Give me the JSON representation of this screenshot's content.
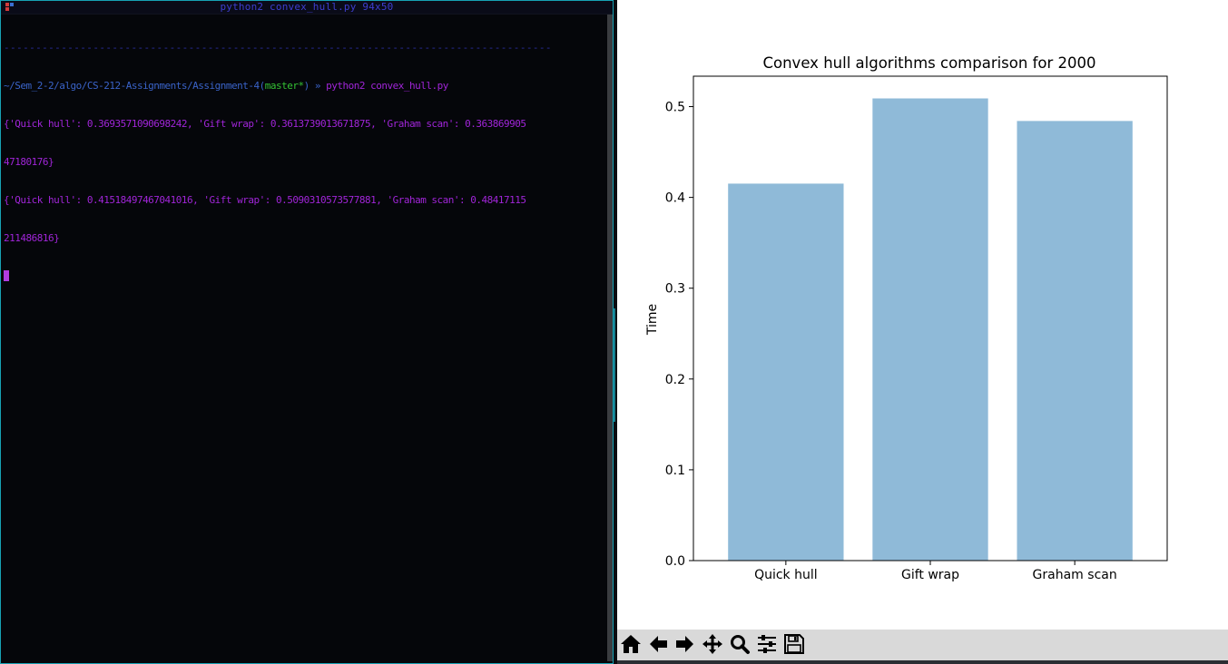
{
  "terminal": {
    "title": "python2 convex_hull.py 94x50",
    "dashes": "--------------------------------------------------------------------------------------",
    "prompt": {
      "path": "~/Sem_2-2/algo/CS-212-Assignments/Assignment-4",
      "branch_open": "(",
      "branch": "master*",
      "branch_close": ")",
      "symbol": " » ",
      "command": "python2 convex_hull.py"
    },
    "output_lines": [
      "{'Quick hull': 0.3693571090698242, 'Gift wrap': 0.3613739013671875, 'Graham scan': 0.363869905",
      "47180176}",
      "{'Quick hull': 0.41518497467041016, 'Gift wrap': 0.5090310573577881, 'Graham scan': 0.48417115",
      "211486816}"
    ],
    "colors": {
      "output": "#a025d8",
      "path": "#3a63c8",
      "branch": "#34c234",
      "border": "#17a2b4"
    }
  },
  "figure": {
    "toolbar": [
      {
        "name": "home-icon",
        "label": "Home"
      },
      {
        "name": "back-arrow-icon",
        "label": "Back"
      },
      {
        "name": "forward-arrow-icon",
        "label": "Forward"
      },
      {
        "name": "pan-icon",
        "label": "Pan"
      },
      {
        "name": "zoom-icon",
        "label": "Zoom"
      },
      {
        "name": "configure-subplots-icon",
        "label": "Configure subplots"
      },
      {
        "name": "save-icon",
        "label": "Save"
      }
    ]
  },
  "chart_data": {
    "type": "bar",
    "title": "Convex hull algorithms comparison for 2000",
    "xlabel": "",
    "ylabel": "Time",
    "categories": [
      "Quick hull",
      "Gift wrap",
      "Graham scan"
    ],
    "values": [
      0.41518497467041016,
      0.5090310573577881,
      0.48417115211486816
    ],
    "ylim": [
      0,
      0.5335
    ],
    "yticks": [
      0.0,
      0.1,
      0.2,
      0.3,
      0.4,
      0.5
    ],
    "ytick_labels": [
      "0.0",
      "0.1",
      "0.2",
      "0.3",
      "0.4",
      "0.5"
    ],
    "bar_color": "#8fbad8",
    "grid": false,
    "legend": "none"
  }
}
